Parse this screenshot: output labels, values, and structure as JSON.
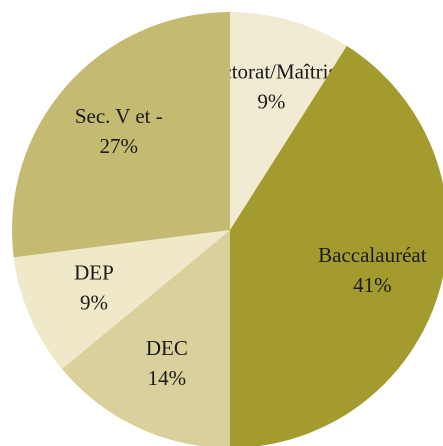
{
  "chart_data": {
    "type": "pie",
    "categories": [
      "Doctorat/Maîtrise",
      "Baccalauréat",
      "DEC",
      "DEP",
      "Sec. V et -"
    ],
    "values": [
      9,
      41,
      14,
      9,
      27
    ],
    "value_labels": [
      "9%",
      "41%",
      "14%",
      "9%",
      "27%"
    ],
    "colors": [
      "#f1ebd3",
      "#a39b2d",
      "#d9d09c",
      "#efe8c9",
      "#c4ba72"
    ]
  }
}
